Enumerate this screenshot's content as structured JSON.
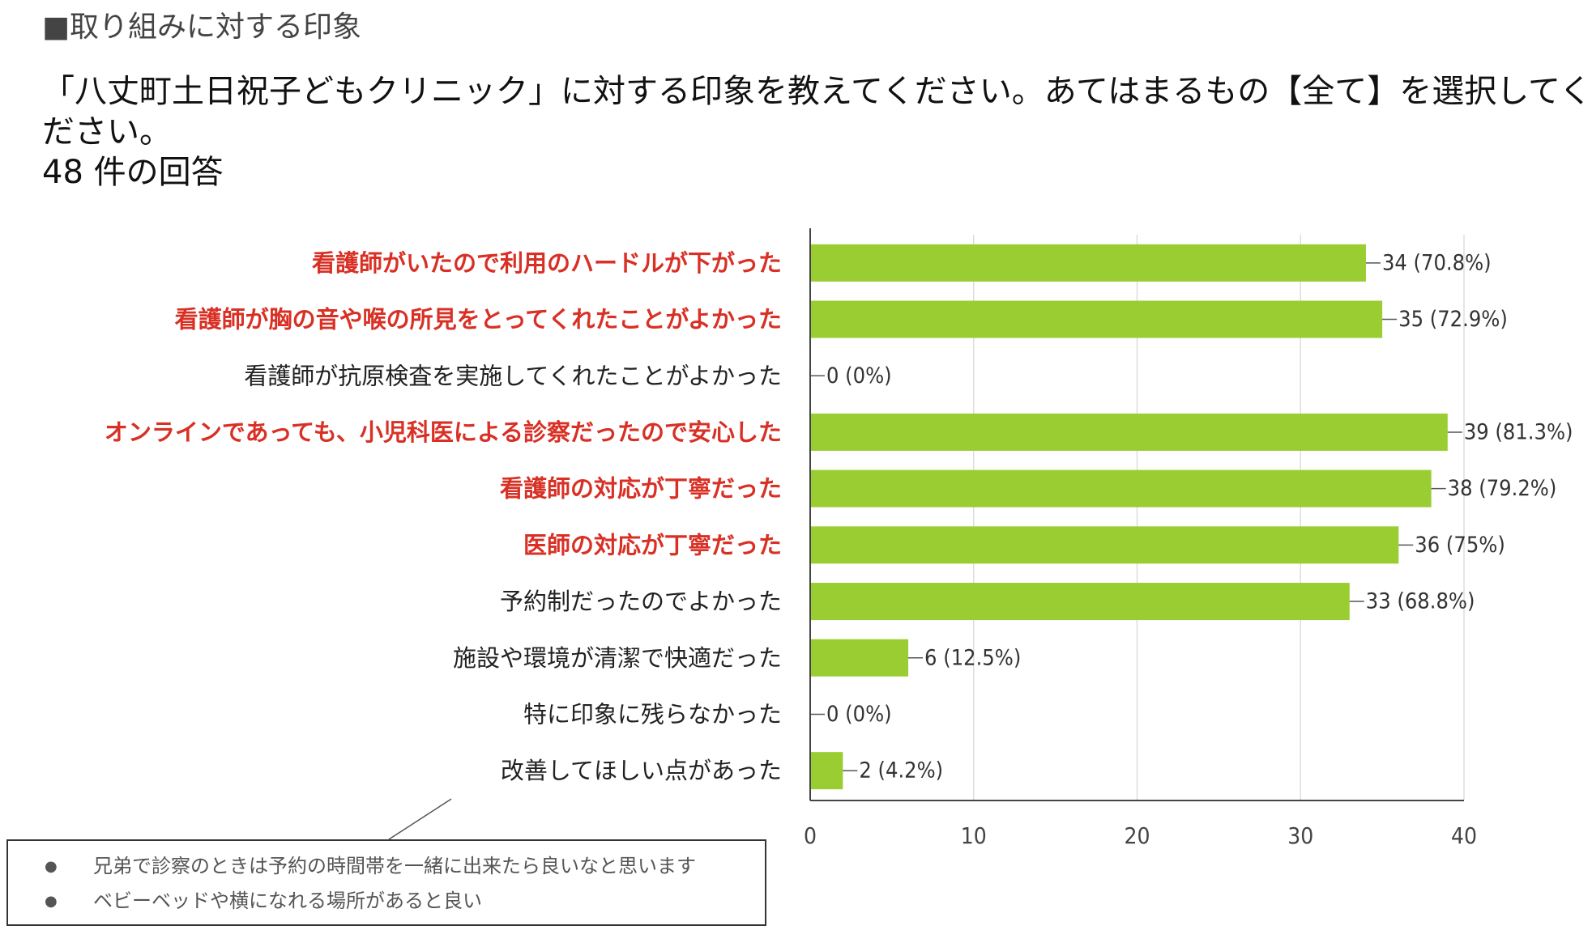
{
  "section_heading": "■取り組みに対する印象",
  "question": {
    "line1": "「八丈町土日祝子どもクリニック」に対する印象を教えてください。あてはまるもの【全て】を選択してく",
    "line2": "ださい。"
  },
  "response_count": "48 件の回答",
  "colors": {
    "bar": "#9ACD32",
    "highlight_label": "#D93025",
    "normal_label": "#222222",
    "axis": "#444444",
    "grid": "#dddddd"
  },
  "chart_data": {
    "type": "bar",
    "orientation": "horizontal",
    "title": "",
    "xlabel": "",
    "ylabel": "",
    "xlim": [
      0,
      40
    ],
    "x_ticks": [
      "0",
      "10",
      "20",
      "30",
      "40"
    ],
    "grid": true,
    "categories": [
      "看護師がいたので利用のハードルが下がった",
      "看護師が胸の音や喉の所見をとってくれたことがよかった",
      "看護師が抗原検査を実施してくれたことがよかった",
      "オンラインであっても、小児科医による診察だったので安心した",
      "看護師の対応が丁寧だった",
      "医師の対応が丁寧だった",
      "予約制だったのでよかった",
      "施設や環境が清潔で快適だった",
      "特に印象に残らなかった",
      "改善してほしい点があった"
    ],
    "highlighted": [
      true,
      true,
      false,
      true,
      true,
      true,
      false,
      false,
      false,
      false
    ],
    "values": [
      34,
      35,
      0,
      39,
      38,
      36,
      33,
      6,
      0,
      2
    ],
    "data_labels": [
      "34 (70.8%)",
      "35 (72.9%)",
      "0 (0%)",
      "39 (81.3%)",
      "38 (79.2%)",
      "36 (75%)",
      "33 (68.8%)",
      "6 (12.5%)",
      "0 (0%)",
      "2 (4.2%)"
    ]
  },
  "callout": {
    "items": [
      "兄弟で診察のときは予約の時間帯を一緒に出来たら良いなと思います",
      "ベビーベッドや横になれる場所があると良い"
    ]
  }
}
